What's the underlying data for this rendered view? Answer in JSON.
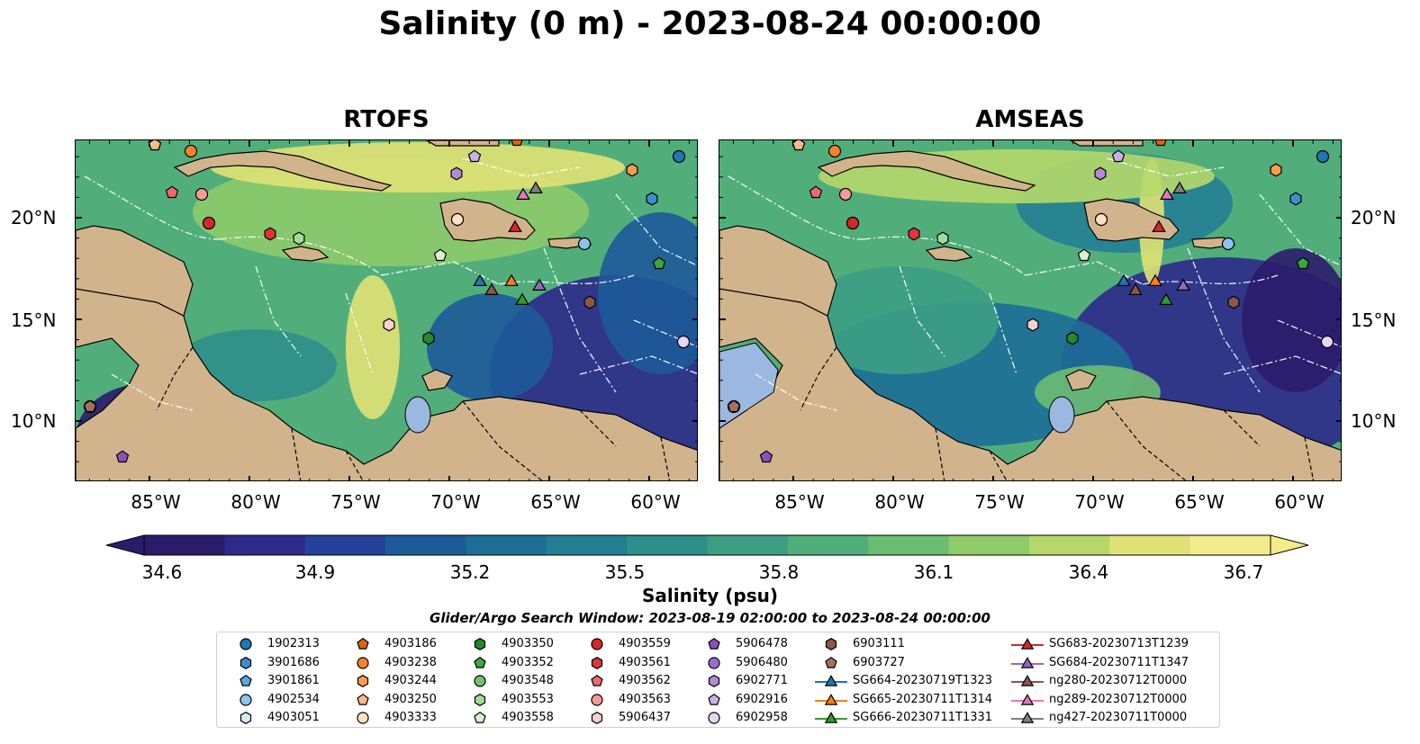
{
  "title": "Salinity (0 m) - 2023-08-24 00:00:00",
  "panels": [
    {
      "title": "RTOFS"
    },
    {
      "title": "AMSEAS"
    }
  ],
  "lat_labels": [
    "20°N",
    "15°N",
    "10°N"
  ],
  "lon_labels": [
    "85°W",
    "80°W",
    "75°W",
    "70°W",
    "65°W",
    "60°W"
  ],
  "colorbar": {
    "label": "Salinity (psu)",
    "ticks": [
      "34.6",
      "34.9",
      "35.2",
      "35.5",
      "35.8",
      "36.1",
      "36.4",
      "36.7"
    ],
    "min": 34.6,
    "max": 36.7,
    "colors": [
      "#2b1c6b",
      "#2c2a8a",
      "#23439a",
      "#1d5a9a",
      "#1c6e97",
      "#227f92",
      "#2d8f8c",
      "#3c9f84",
      "#51ae7b",
      "#6bbd72",
      "#8dcb6b",
      "#b6d86a",
      "#e0e276",
      "#f4ec8a"
    ]
  },
  "search_window": "Glider/Argo Search Window: 2023-08-19 02:00:00 to 2023-08-24 00:00:00",
  "colors": {
    "land": "#d2b48c",
    "lake": "#9bb8e0"
  },
  "legend": [
    {
      "label": "1902313",
      "marker": "circle",
      "color": "#1f77b4"
    },
    {
      "label": "3901686",
      "marker": "hexagon",
      "color": "#3a8fd0"
    },
    {
      "label": "3901861",
      "marker": "pentagon",
      "color": "#5aa6dd"
    },
    {
      "label": "4902534",
      "marker": "circle",
      "color": "#8ec3ea"
    },
    {
      "label": "4903051",
      "marker": "hexagon",
      "color": "#d6ebf8"
    },
    {
      "label": "4903186",
      "marker": "pentagon",
      "color": "#e0640b"
    },
    {
      "label": "4903238",
      "marker": "circle",
      "color": "#f4822a"
    },
    {
      "label": "4903244",
      "marker": "hexagon",
      "color": "#f79b4d"
    },
    {
      "label": "4903250",
      "marker": "pentagon",
      "color": "#f9b98a"
    },
    {
      "label": "4903333",
      "marker": "circle",
      "color": "#fde1c4"
    },
    {
      "label": "4903350",
      "marker": "hexagon",
      "color": "#228a2a"
    },
    {
      "label": "4903352",
      "marker": "pentagon",
      "color": "#3aa83a"
    },
    {
      "label": "4903548",
      "marker": "circle",
      "color": "#6cc56a"
    },
    {
      "label": "4903553",
      "marker": "hexagon",
      "color": "#a3dc9a"
    },
    {
      "label": "4903558",
      "marker": "pentagon",
      "color": "#d8f2cf"
    },
    {
      "label": "4903559",
      "marker": "circle",
      "color": "#d62728"
    },
    {
      "label": "4903561",
      "marker": "hexagon",
      "color": "#e0343a"
    },
    {
      "label": "4903562",
      "marker": "pentagon",
      "color": "#ee6a6a"
    },
    {
      "label": "4903563",
      "marker": "circle",
      "color": "#f59a9a"
    },
    {
      "label": "5906437",
      "marker": "hexagon",
      "color": "#fbd0d0"
    },
    {
      "label": "5906478",
      "marker": "pentagon",
      "color": "#8a52b8"
    },
    {
      "label": "5906480",
      "marker": "circle",
      "color": "#9c6cc8"
    },
    {
      "label": "6902771",
      "marker": "hexagon",
      "color": "#b48ad8"
    },
    {
      "label": "6902916",
      "marker": "pentagon",
      "color": "#cbb0e6"
    },
    {
      "label": "6902958",
      "marker": "circle",
      "color": "#e6d6f3"
    },
    {
      "label": "6903111",
      "marker": "hexagon",
      "color": "#8c564b"
    },
    {
      "label": "6903727",
      "marker": "pentagon",
      "color": "#a6705f"
    },
    {
      "label": "SG664-20230719T1323",
      "marker": "triangle-line",
      "color": "#1f77b4"
    },
    {
      "label": "SG665-20230711T1314",
      "marker": "triangle-line",
      "color": "#ff7f0e"
    },
    {
      "label": "SG666-20230711T1331",
      "marker": "triangle-line",
      "color": "#2ca02c"
    },
    {
      "label": "SG683-20230713T1239",
      "marker": "triangle-line",
      "color": "#d62728"
    },
    {
      "label": "SG684-20230711T1347",
      "marker": "triangle-line",
      "color": "#9467bd"
    },
    {
      "label": "ng280-20230712T0000",
      "marker": "triangle-line",
      "color": "#8c564b"
    },
    {
      "label": "ng289-20230712T0000",
      "marker": "triangle-line",
      "color": "#e377c2"
    },
    {
      "label": "ng427-20230711T0000",
      "marker": "triangle-line",
      "color": "#7f7f7f"
    }
  ]
}
